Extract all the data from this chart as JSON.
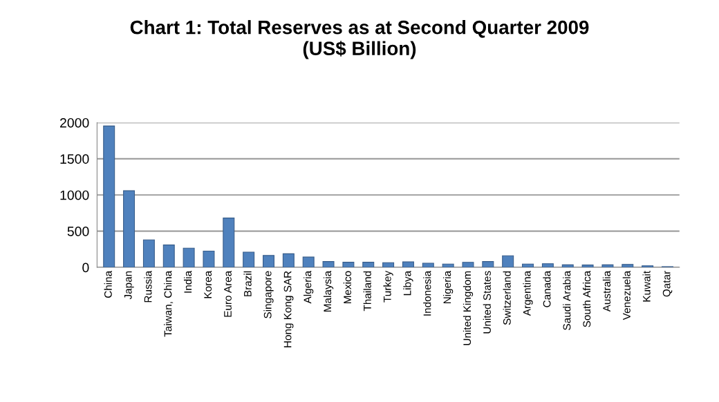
{
  "chart_data": {
    "type": "bar",
    "title": "Chart 1: Total Reserves as at Second Quarter 2009\n(US$ Billion)",
    "categories": [
      "China",
      "Japan",
      "Russia",
      "Taiwan, China",
      "India",
      "Korea",
      "Euro Area",
      "Brazil",
      "Singapore",
      "Hong Kong SAR",
      "Algeria",
      "Malaysia",
      "Mexico",
      "Thailand",
      "Turkey",
      "Libya",
      "Indonesia",
      "Nigeria",
      "United Kingdom",
      "United States",
      "Switzerland",
      "Argentina",
      "Canada",
      "Saudi Arabia",
      "South Africa",
      "Australia",
      "Venezuela",
      "Kuwait",
      "Qatar"
    ],
    "values": [
      1954,
      1059,
      380,
      309,
      265,
      225,
      682,
      210,
      164,
      188,
      142,
      80,
      71,
      71,
      65,
      75,
      57,
      45,
      70,
      80,
      160,
      45,
      50,
      35,
      33,
      35,
      40,
      22,
      10
    ],
    "color": "#4f81bd",
    "ylim": [
      0,
      2000
    ],
    "yticks": [
      0,
      500,
      1000,
      1500,
      2000
    ],
    "grid": "y"
  }
}
